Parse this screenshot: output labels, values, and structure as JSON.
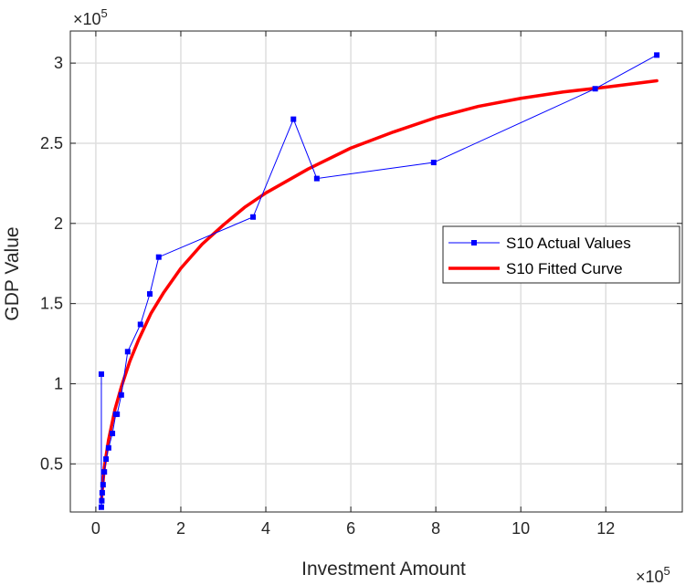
{
  "chart_data": {
    "type": "line",
    "title": "",
    "xlabel": "Investment Amount",
    "ylabel": "GDP Value",
    "x_multiplier_label": "×10",
    "x_multiplier_exp": "5",
    "y_multiplier_label": "×10",
    "y_multiplier_exp": "5",
    "xlim": [
      -0.6,
      13.8
    ],
    "ylim": [
      0.2,
      3.2
    ],
    "x_ticks": [
      0,
      2,
      4,
      6,
      8,
      10,
      12
    ],
    "x_tick_labels": [
      "0",
      "2",
      "4",
      "6",
      "8",
      "10",
      "12"
    ],
    "y_ticks": [
      0.5,
      1,
      1.5,
      2,
      2.5,
      3
    ],
    "y_tick_labels": [
      "0.5",
      "1",
      "1.5",
      "2",
      "2.5",
      "3"
    ],
    "grid": true,
    "legend_position": "right",
    "series": [
      {
        "name": "S10 Actual Values",
        "color": "#0000ff",
        "marker": "square",
        "x": [
          0.13,
          0.13,
          0.14,
          0.15,
          0.17,
          0.2,
          0.24,
          0.3,
          0.39,
          0.47,
          0.5,
          0.6,
          0.75,
          1.05,
          1.27,
          1.48,
          3.7,
          4.65,
          5.2,
          7.95,
          11.75,
          13.2
        ],
        "y": [
          1.06,
          0.23,
          0.27,
          0.32,
          0.37,
          0.45,
          0.53,
          0.6,
          0.69,
          0.81,
          0.81,
          0.93,
          1.2,
          1.37,
          1.56,
          1.79,
          2.04,
          2.65,
          2.28,
          2.38,
          2.84,
          3.05
        ]
      },
      {
        "name": "S10 Fitted Curve",
        "color": "#ff0000",
        "marker": "none",
        "x": [
          0.13,
          0.2,
          0.3,
          0.45,
          0.6,
          0.8,
          1.0,
          1.3,
          1.6,
          2.0,
          2.5,
          3.0,
          3.5,
          4.0,
          5.0,
          6.0,
          7.0,
          8.0,
          9.0,
          10.0,
          11.0,
          12.0,
          13.2
        ],
        "y": [
          0.27,
          0.48,
          0.65,
          0.84,
          0.98,
          1.14,
          1.27,
          1.44,
          1.57,
          1.72,
          1.87,
          1.99,
          2.1,
          2.19,
          2.34,
          2.47,
          2.57,
          2.66,
          2.73,
          2.78,
          2.82,
          2.85,
          2.89
        ]
      }
    ]
  }
}
